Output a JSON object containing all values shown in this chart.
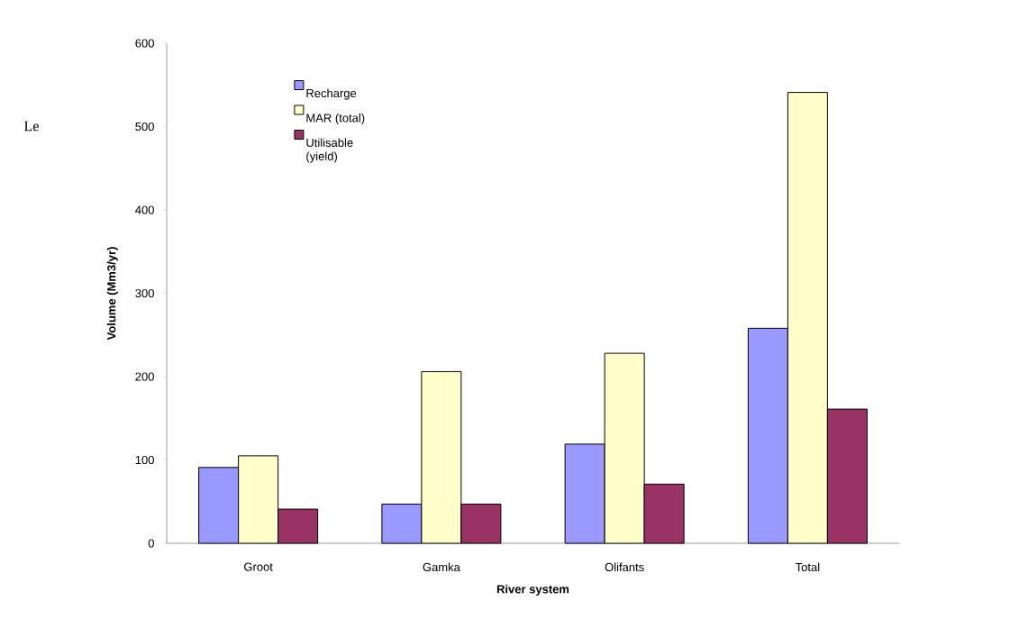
{
  "chart_data": {
    "type": "bar",
    "xlabel": "River system",
    "ylabel": "Volume (Mm3/yr)",
    "categories": [
      "Groot",
      "Gamka",
      "Olifants",
      "Total"
    ],
    "series": [
      {
        "name": "Recharge",
        "color": "#9999ff",
        "values": [
          91,
          47,
          119,
          258
        ]
      },
      {
        "name": "MAR (total)",
        "color": "#ffffcc",
        "values": [
          105,
          206,
          228,
          541
        ]
      },
      {
        "name": "Utilisable (yield)",
        "color": "#993366",
        "values": [
          41,
          47,
          71,
          161
        ]
      }
    ],
    "ylim": [
      0,
      600
    ],
    "yticks": [
      0,
      100,
      200,
      300,
      400,
      500,
      600
    ],
    "legend": "top left",
    "annotations": [
      "Le"
    ]
  }
}
